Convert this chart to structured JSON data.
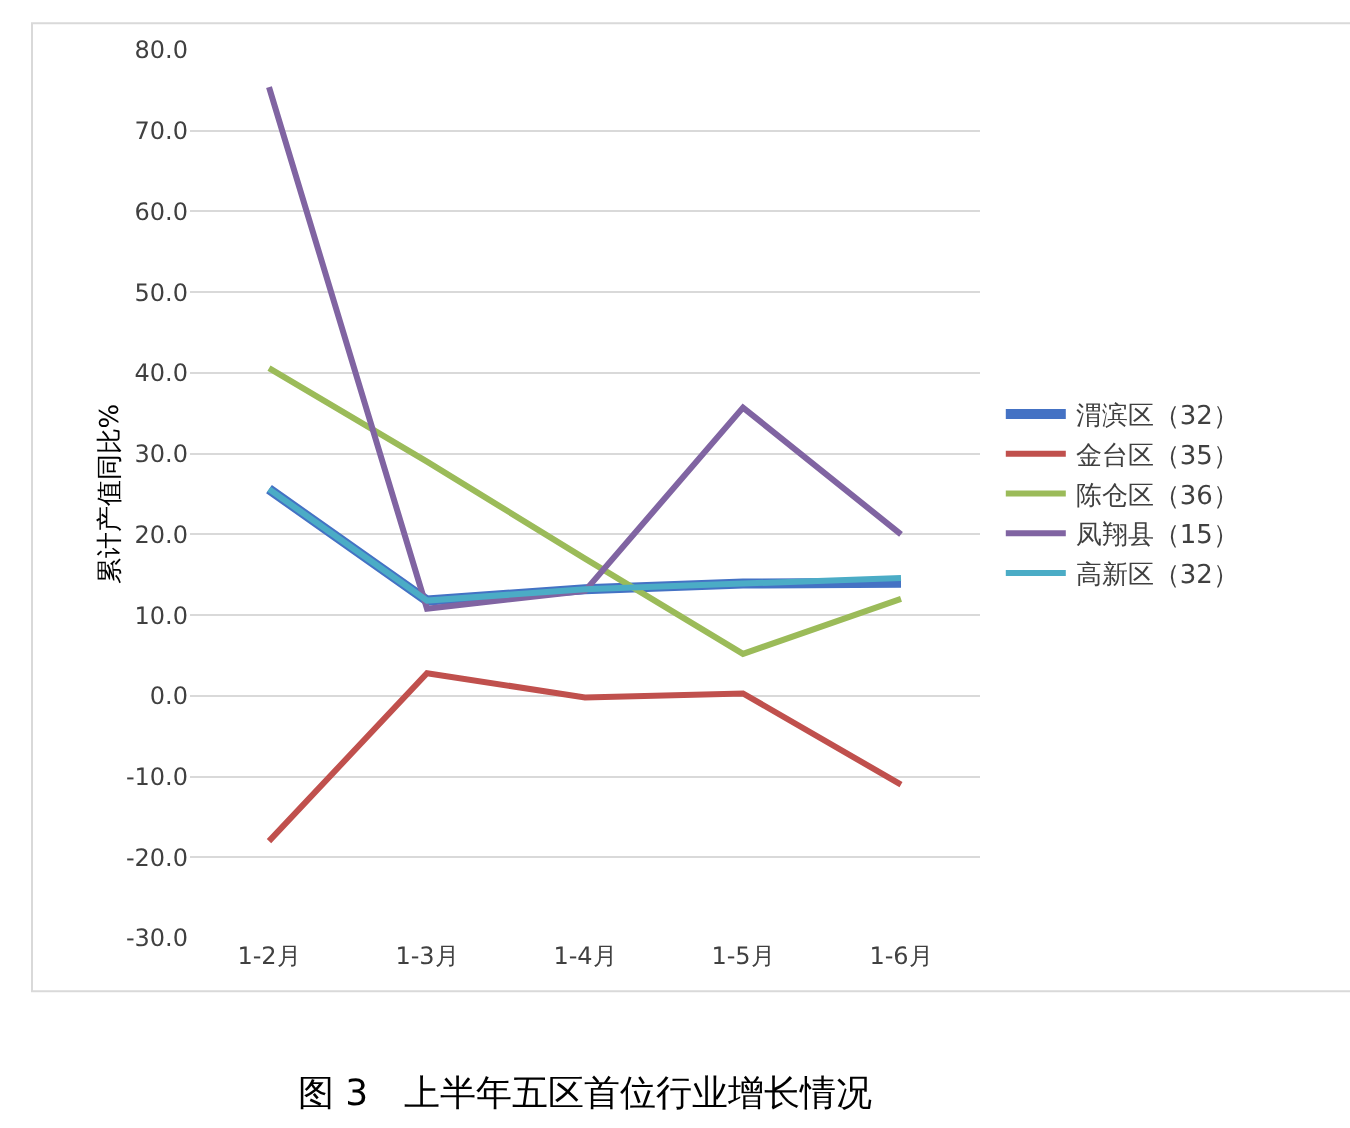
{
  "chart_data": {
    "type": "line",
    "title": "图 3　上半年五区首位行业增长情况",
    "ylabel": "累计产值同比%",
    "categories": [
      "1-2月",
      "1-3月",
      "1-4月",
      "1-5月",
      "1-6月"
    ],
    "series": [
      {
        "name": "渭滨区（32）",
        "color": "#4472c4",
        "values": [
          25.6,
          11.8,
          13.2,
          13.9,
          14.0
        ]
      },
      {
        "name": "金台区（35）",
        "color": "#c0504d",
        "values": [
          -18,
          2.8,
          -0.2,
          0.3,
          -11
        ]
      },
      {
        "name": "陈仓区（36）",
        "color": "#9bbb59",
        "values": [
          40.6,
          29,
          17,
          5.2,
          12
        ]
      },
      {
        "name": "凤翔县（15）",
        "color": "#8064a2",
        "values": [
          75.4,
          10.8,
          13,
          35.7,
          20
        ]
      },
      {
        "name": "高新区（32）",
        "color": "#4bacc6",
        "values": [
          25.6,
          11.8,
          13.2,
          13.9,
          14.6
        ]
      }
    ],
    "ylim": [
      -30,
      80
    ],
    "yticks": [
      {
        "value": -30,
        "label": "-30.0"
      },
      {
        "value": -20,
        "label": "-20.0"
      },
      {
        "value": -10,
        "label": "-10.0"
      },
      {
        "value": 0,
        "label": "0.0"
      },
      {
        "value": 10,
        "label": "10.0"
      },
      {
        "value": 20,
        "label": "20.0"
      },
      {
        "value": 30,
        "label": "30.0"
      },
      {
        "value": 40,
        "label": "40.0"
      },
      {
        "value": 50,
        "label": "50.0"
      },
      {
        "value": 60,
        "label": "60.0"
      },
      {
        "value": 70,
        "label": "70.0"
      },
      {
        "value": 80,
        "label": "80.0"
      }
    ],
    "grid": "y",
    "legend": "right",
    "marker": "none",
    "line_style": "solid"
  }
}
